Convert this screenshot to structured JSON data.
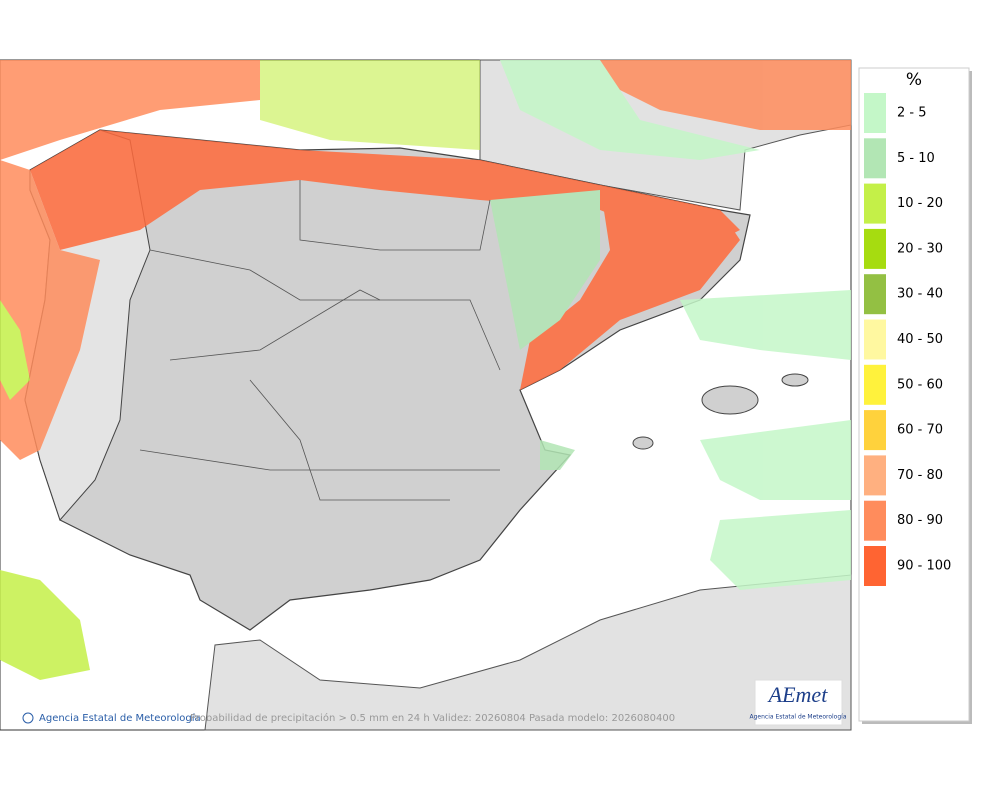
{
  "legend": {
    "title": "%",
    "entries": [
      {
        "label": "2 - 5",
        "color": "#c4f7c8"
      },
      {
        "label": "5 - 10",
        "color": "#b2e6b4"
      },
      {
        "label": "10 - 20",
        "color": "#c4f048"
      },
      {
        "label": "20 - 30",
        "color": "#a6dc10"
      },
      {
        "label": "30 - 40",
        "color": "#93c043"
      },
      {
        "label": "40 - 50",
        "color": "#fff8a0"
      },
      {
        "label": "50 - 60",
        "color": "#fff23c"
      },
      {
        "label": "60 - 70",
        "color": "#ffd23c"
      },
      {
        "label": "70 - 80",
        "color": "#ffb080"
      },
      {
        "label": "80 - 90",
        "color": "#ff8c5c"
      },
      {
        "label": "90 - 100",
        "color": "#ff6432"
      }
    ]
  },
  "footer": {
    "credit": "Agencia Estatal de Meteorología",
    "caption": "Probabilidad de precipitación > 0.5 mm en 24 h Validez: 20260804 Pasada modelo: 2026080400"
  },
  "logo": {
    "name": "AEmet",
    "subtitle": "Agencia Estatal de Meteorología"
  }
}
